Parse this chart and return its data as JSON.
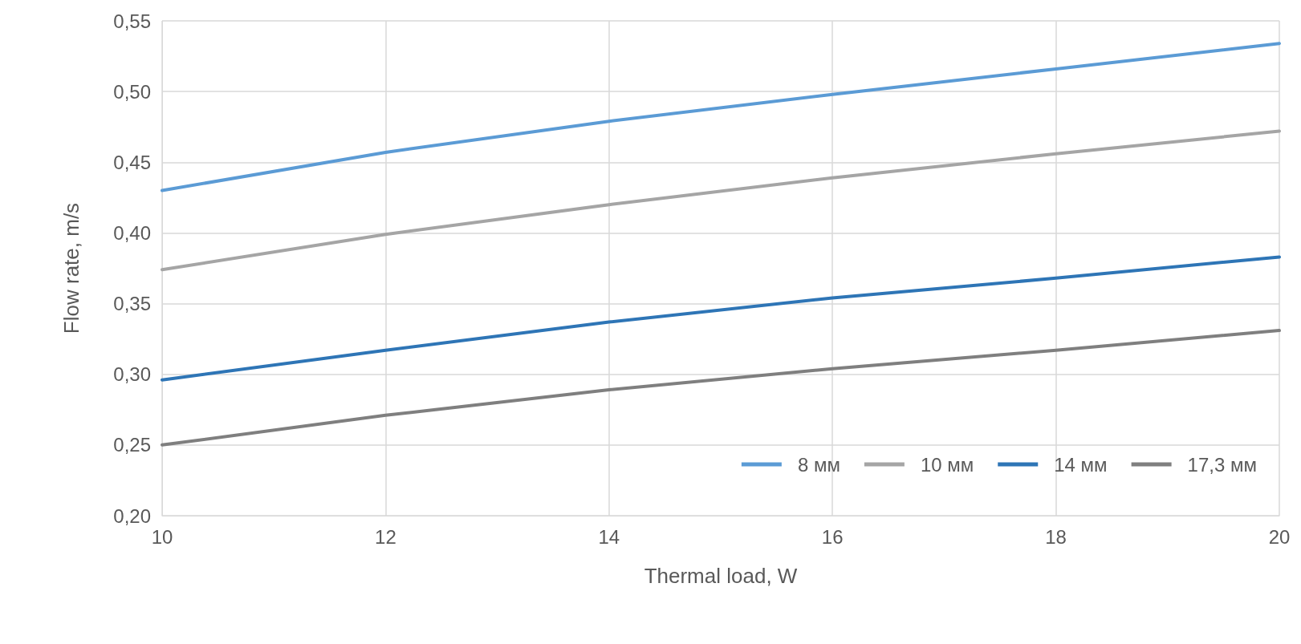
{
  "chart_data": {
    "type": "line",
    "xlabel": "Thermal load, W",
    "ylabel": "Flow rate, m/s",
    "x": [
      10,
      12,
      14,
      16,
      18,
      20
    ],
    "series": [
      {
        "name": "8 мм",
        "color": "#5b9bd5",
        "values": [
          0.43,
          0.457,
          0.479,
          0.498,
          0.516,
          0.534
        ]
      },
      {
        "name": "10 мм",
        "color": "#a5a5a5",
        "values": [
          0.374,
          0.399,
          0.42,
          0.439,
          0.456,
          0.472
        ]
      },
      {
        "name": "14 мм",
        "color": "#2e75b6",
        "values": [
          0.296,
          0.317,
          0.337,
          0.354,
          0.368,
          0.383
        ]
      },
      {
        "name": "17,3 мм",
        "color": "#7f7f7f",
        "values": [
          0.25,
          0.271,
          0.289,
          0.304,
          0.317,
          0.331
        ]
      }
    ],
    "xlim": [
      10,
      20
    ],
    "xticks": [
      10,
      12,
      14,
      16,
      18,
      20
    ],
    "ylim": [
      0.2,
      0.55
    ],
    "yticks": [
      {
        "value": 0.2,
        "label": "0,20"
      },
      {
        "value": 0.25,
        "label": "0,25"
      },
      {
        "value": 0.3,
        "label": "0,30"
      },
      {
        "value": 0.35,
        "label": "0,35"
      },
      {
        "value": 0.4,
        "label": "0,40"
      },
      {
        "value": 0.45,
        "label": "0,45"
      },
      {
        "value": 0.5,
        "label": "0,50"
      },
      {
        "value": 0.55,
        "label": "0,55"
      }
    ],
    "grid": true,
    "legend": "bottom right",
    "marker": "none",
    "line_style": "solid"
  }
}
